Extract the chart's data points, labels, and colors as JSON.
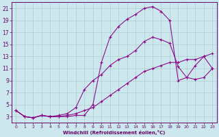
{
  "background_color": "#cce8ee",
  "grid_color": "#aacccc",
  "line_color": "#880088",
  "xlabel": "Windchill (Refroidissement éolien,°C)",
  "xlabel_color": "#660066",
  "tick_color": "#660066",
  "xlim": [
    -0.5,
    23.5
  ],
  "ylim": [
    2.0,
    22.0
  ],
  "xticks": [
    0,
    1,
    2,
    3,
    4,
    5,
    6,
    7,
    8,
    9,
    10,
    11,
    12,
    13,
    14,
    15,
    16,
    17,
    18,
    19,
    20,
    21,
    22,
    23
  ],
  "yticks": [
    3,
    5,
    7,
    9,
    11,
    13,
    15,
    17,
    19,
    21
  ],
  "line1_x": [
    0,
    1,
    2,
    3,
    4,
    5,
    6,
    7,
    8,
    9,
    10,
    11,
    12,
    13,
    14,
    15,
    16,
    17,
    18,
    19,
    20,
    21,
    22,
    23
  ],
  "line1_y": [
    4.0,
    3.0,
    2.8,
    3.2,
    3.0,
    3.0,
    3.0,
    3.2,
    3.2,
    5.0,
    12.0,
    16.2,
    18.0,
    19.2,
    20.0,
    21.0,
    21.3,
    20.5,
    19.0,
    9.0,
    9.5,
    11.5,
    13.0,
    11.0
  ],
  "line2_x": [
    0,
    1,
    2,
    3,
    4,
    5,
    6,
    7,
    8,
    9,
    10,
    11,
    12,
    13,
    14,
    15,
    16,
    17,
    18,
    19,
    20,
    21,
    22,
    23
  ],
  "line2_y": [
    4.0,
    3.0,
    2.8,
    3.2,
    3.0,
    3.2,
    3.5,
    4.5,
    7.5,
    9.0,
    10.0,
    11.5,
    12.5,
    13.0,
    14.0,
    15.5,
    16.2,
    15.8,
    15.2,
    11.3,
    9.5,
    9.2,
    9.5,
    11.0
  ],
  "line3_x": [
    0,
    1,
    2,
    3,
    4,
    5,
    6,
    7,
    8,
    9,
    10,
    11,
    12,
    13,
    14,
    15,
    16,
    17,
    18,
    19,
    20,
    21,
    22,
    23
  ],
  "line3_y": [
    4.0,
    3.0,
    2.8,
    3.2,
    3.0,
    3.0,
    3.2,
    3.5,
    4.0,
    4.5,
    5.5,
    6.5,
    7.5,
    8.5,
    9.5,
    10.5,
    11.0,
    11.5,
    12.0,
    12.0,
    12.5,
    12.5,
    13.0,
    13.5
  ]
}
